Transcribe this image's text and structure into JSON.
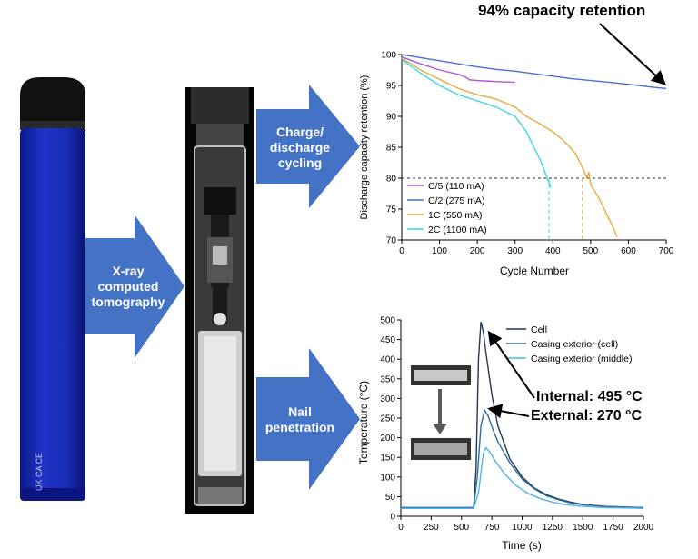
{
  "arrows": {
    "xray": [
      "X-ray",
      "computed",
      "tomography"
    ],
    "charge": [
      "Charge/",
      "discharge",
      "cycling"
    ],
    "nail": [
      "Nail",
      "penetration"
    ]
  },
  "device": {
    "mark_text": "UK CA CE"
  },
  "annotations": {
    "capacity": "94% capacity retention",
    "internal": "Internal: 495 °C",
    "external": "External: 270 °C"
  },
  "chart_data": [
    {
      "type": "line",
      "xlabel": "Cycle Number",
      "ylabel": "Discharge capacity retention (%)",
      "xlim": [
        0,
        700
      ],
      "ylim": [
        70,
        100
      ],
      "xticks": [
        0,
        100,
        200,
        300,
        400,
        500,
        600,
        700
      ],
      "yticks": [
        70,
        75,
        80,
        85,
        90,
        95,
        100
      ],
      "reference_line_y": 80,
      "series": [
        {
          "name": "C/5 (110 mA)",
          "color": "#b455d6",
          "x": [
            0,
            50,
            100,
            150,
            170,
            180,
            200,
            230,
            260,
            300
          ],
          "y": [
            99.6,
            98.5,
            97.5,
            96.8,
            96.3,
            95.9,
            95.8,
            95.7,
            95.6,
            95.5
          ]
        },
        {
          "name": "C/2 (275 mA)",
          "color": "#4a6fd6",
          "x": [
            0,
            50,
            100,
            150,
            200,
            250,
            300,
            350,
            400,
            450,
            500,
            550,
            600,
            650,
            700
          ],
          "y": [
            100,
            99.5,
            99.0,
            98.5,
            98.0,
            97.6,
            97.3,
            96.9,
            96.5,
            96.1,
            95.8,
            95.5,
            95.2,
            94.8,
            94.5
          ]
        },
        {
          "name": "1C (550 mA)",
          "color": "#e3ac3c",
          "x": [
            0,
            50,
            100,
            150,
            200,
            250,
            300,
            330,
            360,
            400,
            430,
            460,
            480,
            490,
            495,
            500,
            520,
            540,
            560,
            570
          ],
          "y": [
            99.4,
            97.5,
            96.0,
            94.5,
            93.5,
            92.8,
            91.5,
            90.0,
            89.0,
            87.5,
            86.0,
            84.0,
            81.5,
            80.0,
            81.0,
            79.0,
            77.0,
            74.5,
            72.0,
            70.5
          ]
        },
        {
          "name": "2C (1100 mA)",
          "color": "#3fd6dd",
          "x": [
            0,
            50,
            100,
            150,
            200,
            250,
            300,
            330,
            350,
            370,
            385,
            395
          ],
          "y": [
            99.2,
            97.0,
            95.0,
            93.5,
            92.5,
            91.5,
            90.0,
            87.5,
            85.0,
            82.5,
            80.0,
            78.5
          ]
        }
      ]
    },
    {
      "type": "line",
      "xlabel": "Time (s)",
      "ylabel": "Temperature (°C)",
      "xlim": [
        0,
        2000
      ],
      "ylim": [
        0,
        500
      ],
      "xticks": [
        0,
        250,
        500,
        750,
        1000,
        1250,
        1500,
        1750,
        2000
      ],
      "yticks": [
        0,
        50,
        100,
        150,
        200,
        250,
        300,
        350,
        400,
        450,
        500
      ],
      "series": [
        {
          "name": "Cell",
          "color": "#1f3a5a",
          "x": [
            0,
            600,
            620,
            640,
            660,
            680,
            700,
            750,
            800,
            900,
            1000,
            1100,
            1200,
            1300,
            1400,
            1500,
            1700,
            1900,
            2000
          ],
          "y": [
            22,
            22,
            120,
            400,
            495,
            470,
            420,
            310,
            230,
            145,
            100,
            72,
            55,
            44,
            36,
            30,
            25,
            23,
            22
          ]
        },
        {
          "name": "Casing exterior (cell)",
          "color": "#2e6e9e",
          "x": [
            0,
            600,
            630,
            660,
            690,
            720,
            760,
            800,
            900,
            1000,
            1100,
            1200,
            1300,
            1400,
            1500,
            1700,
            1900,
            2000
          ],
          "y": [
            22,
            22,
            100,
            230,
            270,
            255,
            220,
            190,
            135,
            95,
            70,
            52,
            42,
            34,
            29,
            25,
            23,
            22
          ]
        },
        {
          "name": "Casing exterior (middle)",
          "color": "#4fb3e6",
          "x": [
            0,
            600,
            640,
            680,
            700,
            730,
            780,
            850,
            950,
            1050,
            1150,
            1250,
            1350,
            1500,
            1700,
            1900,
            2000
          ],
          "y": [
            20,
            20,
            60,
            160,
            175,
            165,
            140,
            110,
            78,
            58,
            45,
            36,
            30,
            25,
            22,
            21,
            20
          ]
        }
      ]
    }
  ]
}
